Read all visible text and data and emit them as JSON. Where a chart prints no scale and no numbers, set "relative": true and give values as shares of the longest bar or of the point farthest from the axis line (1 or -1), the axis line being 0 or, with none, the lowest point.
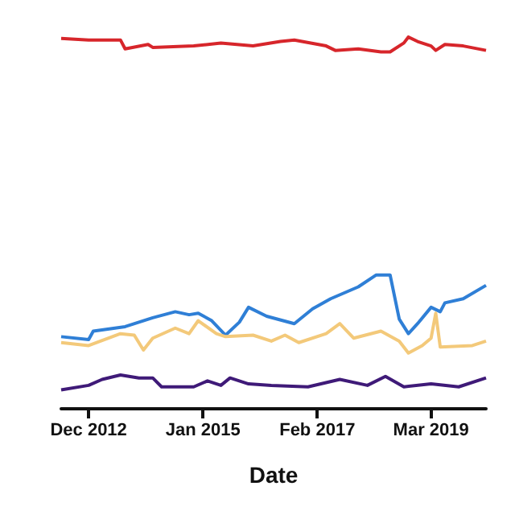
{
  "chart_data": {
    "type": "line",
    "relative": true,
    "xlabel": "Date",
    "marker": "none",
    "xlim": [
      "2012-06",
      "2020-03"
    ],
    "xticks": [
      {
        "value": "2012-12",
        "label": "Dec 2012"
      },
      {
        "value": "2015-01",
        "label": "Jan 2015"
      },
      {
        "value": "2017-02",
        "label": "Feb 2017"
      },
      {
        "value": "2019-03",
        "label": "Mar 2019"
      }
    ],
    "series": [
      {
        "color": "#d7262b",
        "x": [
          "2012-06",
          "2012-12",
          "2013-07",
          "2013-08",
          "2014-01",
          "2014-02",
          "2014-11",
          "2015-05",
          "2015-12",
          "2016-06",
          "2016-09",
          "2017-04",
          "2017-06",
          "2017-11",
          "2018-04",
          "2018-06",
          "2018-09",
          "2018-10",
          "2018-12",
          "2019-03",
          "2019-04",
          "2019-06",
          "2019-10",
          "2020-03"
        ],
        "values": [
          0.996,
          0.992,
          0.992,
          0.968,
          0.98,
          0.972,
          0.976,
          0.984,
          0.976,
          0.988,
          0.992,
          0.976,
          0.964,
          0.968,
          0.96,
          0.96,
          0.984,
          1.0,
          0.988,
          0.976,
          0.964,
          0.98,
          0.976,
          0.964
        ]
      },
      {
        "color": "#2f7fd6",
        "x": [
          "2012-06",
          "2012-12",
          "2013-01",
          "2013-08",
          "2014-02",
          "2014-07",
          "2014-10",
          "2014-12",
          "2015-03",
          "2015-06",
          "2015-09",
          "2015-11",
          "2016-03",
          "2016-09",
          "2017-01",
          "2017-05",
          "2017-11",
          "2018-03",
          "2018-06",
          "2018-08",
          "2018-10",
          "2018-12",
          "2019-03",
          "2019-05",
          "2019-06",
          "2019-10",
          "2020-03"
        ],
        "values": [
          0.194,
          0.186,
          0.209,
          0.221,
          0.245,
          0.261,
          0.253,
          0.257,
          0.237,
          0.198,
          0.233,
          0.273,
          0.249,
          0.229,
          0.269,
          0.296,
          0.328,
          0.36,
          0.36,
          0.241,
          0.202,
          0.229,
          0.273,
          0.261,
          0.285,
          0.296,
          0.332
        ]
      },
      {
        "color": "#f3c97a",
        "x": [
          "2012-06",
          "2012-12",
          "2013-07",
          "2013-10",
          "2013-12",
          "2014-02",
          "2014-07",
          "2014-10",
          "2014-12",
          "2015-04",
          "2015-06",
          "2015-12",
          "2016-04",
          "2016-07",
          "2016-10",
          "2017-04",
          "2017-07",
          "2017-10",
          "2018-04",
          "2018-08",
          "2018-10",
          "2019-01",
          "2019-03",
          "2019-04",
          "2019-05",
          "2019-12",
          "2020-03"
        ],
        "values": [
          0.178,
          0.17,
          0.202,
          0.198,
          0.158,
          0.19,
          0.217,
          0.202,
          0.237,
          0.202,
          0.194,
          0.198,
          0.182,
          0.198,
          0.178,
          0.202,
          0.229,
          0.19,
          0.209,
          0.182,
          0.15,
          0.17,
          0.19,
          0.257,
          0.166,
          0.17,
          0.182
        ]
      },
      {
        "color": "#3f1a78",
        "x": [
          "2012-06",
          "2012-12",
          "2013-03",
          "2013-07",
          "2013-11",
          "2014-02",
          "2014-04",
          "2014-11",
          "2015-02",
          "2015-05",
          "2015-07",
          "2015-11",
          "2016-04",
          "2016-12",
          "2017-07",
          "2018-01",
          "2018-05",
          "2018-09",
          "2019-03",
          "2019-09",
          "2020-03"
        ],
        "values": [
          0.051,
          0.063,
          0.079,
          0.091,
          0.083,
          0.083,
          0.059,
          0.059,
          0.075,
          0.063,
          0.083,
          0.067,
          0.063,
          0.059,
          0.079,
          0.063,
          0.087,
          0.059,
          0.067,
          0.059,
          0.083
        ]
      }
    ]
  }
}
